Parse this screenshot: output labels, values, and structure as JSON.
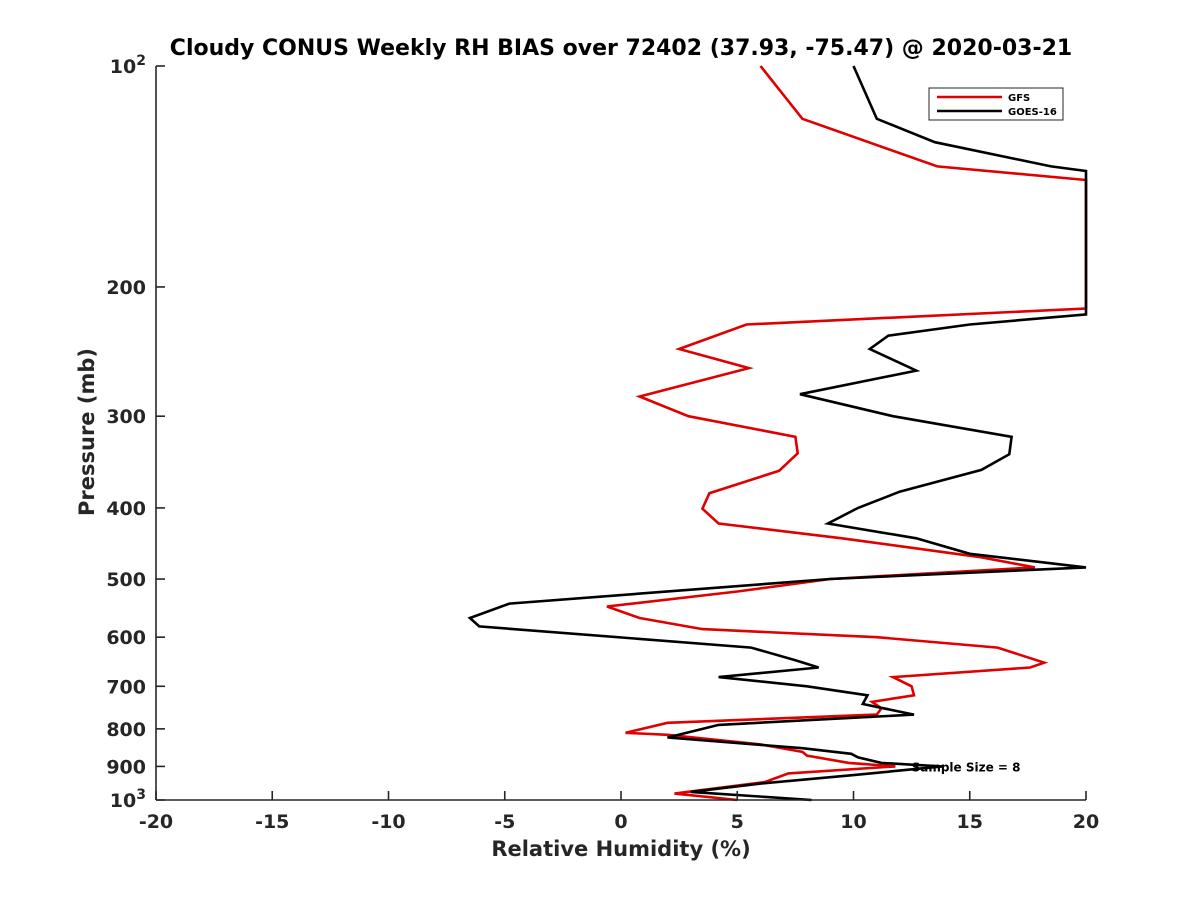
{
  "chart_data": {
    "type": "line",
    "title": "Cloudy CONUS Weekly RH BIAS over 72402 (37.93, -75.47) @ 2020-03-21",
    "xlabel": "Relative Humidity (%)",
    "ylabel": "Pressure (mb)",
    "xlim": [
      -20,
      20
    ],
    "ylim": [
      100,
      1000
    ],
    "y_scale": "log",
    "y_reversed": true,
    "grid": false,
    "legend_position": "top-right",
    "x_ticks": [
      "-20",
      "-15",
      "-10",
      "-5",
      "0",
      "5",
      "10",
      "15",
      "20"
    ],
    "x_tick_values": [
      -20,
      -15,
      -10,
      -5,
      0,
      5,
      10,
      15,
      20
    ],
    "y_ticks": [
      {
        "value": 100,
        "base": "10",
        "exp": "2"
      },
      {
        "value": 200,
        "label": "200"
      },
      {
        "value": 300,
        "label": "300"
      },
      {
        "value": 400,
        "label": "400"
      },
      {
        "value": 500,
        "label": "500"
      },
      {
        "value": 600,
        "label": "600"
      },
      {
        "value": 700,
        "label": "700"
      },
      {
        "value": 800,
        "label": "800"
      },
      {
        "value": 900,
        "label": "900"
      },
      {
        "value": 1000,
        "base": "10",
        "exp": "3"
      }
    ],
    "series": [
      {
        "name": "GFS",
        "color": "#e00000",
        "points": [
          {
            "x": 6.0,
            "y": 100
          },
          {
            "x": 7.8,
            "y": 118
          },
          {
            "x": 13.6,
            "y": 137
          },
          {
            "x": 20.0,
            "y": 143
          },
          {
            "x": 20.0,
            "y": 214
          },
          {
            "x": 5.4,
            "y": 225
          },
          {
            "x": 2.5,
            "y": 243
          },
          {
            "x": 5.5,
            "y": 258
          },
          {
            "x": 0.8,
            "y": 282
          },
          {
            "x": 2.9,
            "y": 300
          },
          {
            "x": 7.5,
            "y": 320
          },
          {
            "x": 7.6,
            "y": 337
          },
          {
            "x": 6.8,
            "y": 356
          },
          {
            "x": 3.8,
            "y": 382
          },
          {
            "x": 3.5,
            "y": 401
          },
          {
            "x": 4.2,
            "y": 420
          },
          {
            "x": 9.5,
            "y": 440
          },
          {
            "x": 15.5,
            "y": 467
          },
          {
            "x": 17.8,
            "y": 482
          },
          {
            "x": 9.0,
            "y": 500
          },
          {
            "x": 5.0,
            "y": 520
          },
          {
            "x": -0.6,
            "y": 545
          },
          {
            "x": 0.8,
            "y": 565
          },
          {
            "x": 3.5,
            "y": 585
          },
          {
            "x": 11.0,
            "y": 600
          },
          {
            "x": 16.2,
            "y": 620
          },
          {
            "x": 18.2,
            "y": 650
          },
          {
            "x": 17.6,
            "y": 660
          },
          {
            "x": 11.7,
            "y": 680
          },
          {
            "x": 12.5,
            "y": 700
          },
          {
            "x": 12.6,
            "y": 720
          },
          {
            "x": 10.8,
            "y": 735
          },
          {
            "x": 11.2,
            "y": 750
          },
          {
            "x": 11.0,
            "y": 765
          },
          {
            "x": 2.0,
            "y": 785
          },
          {
            "x": 0.2,
            "y": 810
          },
          {
            "x": 2.0,
            "y": 815
          },
          {
            "x": 6.0,
            "y": 840
          },
          {
            "x": 7.8,
            "y": 860
          },
          {
            "x": 8.0,
            "y": 870
          },
          {
            "x": 9.8,
            "y": 890
          },
          {
            "x": 11.8,
            "y": 900
          },
          {
            "x": 7.2,
            "y": 920
          },
          {
            "x": 6.2,
            "y": 945
          },
          {
            "x": 2.3,
            "y": 980
          },
          {
            "x": 5.0,
            "y": 1000
          }
        ]
      },
      {
        "name": "GOES-16",
        "color": "#000000",
        "points": [
          {
            "x": 10.0,
            "y": 100
          },
          {
            "x": 11.0,
            "y": 118
          },
          {
            "x": 13.5,
            "y": 127
          },
          {
            "x": 18.5,
            "y": 137
          },
          {
            "x": 20.0,
            "y": 139
          },
          {
            "x": 20.0,
            "y": 218
          },
          {
            "x": 15.0,
            "y": 225
          },
          {
            "x": 11.5,
            "y": 233
          },
          {
            "x": 10.7,
            "y": 243
          },
          {
            "x": 12.7,
            "y": 260
          },
          {
            "x": 7.7,
            "y": 280
          },
          {
            "x": 11.7,
            "y": 300
          },
          {
            "x": 16.8,
            "y": 320
          },
          {
            "x": 16.7,
            "y": 338
          },
          {
            "x": 15.5,
            "y": 355
          },
          {
            "x": 12.0,
            "y": 380
          },
          {
            "x": 10.2,
            "y": 400
          },
          {
            "x": 8.9,
            "y": 420
          },
          {
            "x": 12.7,
            "y": 440
          },
          {
            "x": 15.0,
            "y": 462
          },
          {
            "x": 20.0,
            "y": 482
          },
          {
            "x": 9.0,
            "y": 500
          },
          {
            "x": -4.8,
            "y": 540
          },
          {
            "x": -6.5,
            "y": 565
          },
          {
            "x": -6.1,
            "y": 580
          },
          {
            "x": 5.6,
            "y": 620
          },
          {
            "x": 7.5,
            "y": 645
          },
          {
            "x": 8.5,
            "y": 660
          },
          {
            "x": 4.2,
            "y": 680
          },
          {
            "x": 8.0,
            "y": 700
          },
          {
            "x": 10.6,
            "y": 720
          },
          {
            "x": 10.4,
            "y": 740
          },
          {
            "x": 12.6,
            "y": 765
          },
          {
            "x": 4.2,
            "y": 790
          },
          {
            "x": 2.0,
            "y": 822
          },
          {
            "x": 7.8,
            "y": 850
          },
          {
            "x": 9.9,
            "y": 865
          },
          {
            "x": 10.2,
            "y": 875
          },
          {
            "x": 11.2,
            "y": 890
          },
          {
            "x": 13.8,
            "y": 900
          },
          {
            "x": 10.0,
            "y": 925
          },
          {
            "x": 6.0,
            "y": 950
          },
          {
            "x": 3.0,
            "y": 975
          },
          {
            "x": 8.2,
            "y": 1000
          }
        ]
      }
    ],
    "annotations": [
      {
        "text": "Sample Size = 8",
        "x": 12.5,
        "y": 900
      }
    ]
  }
}
